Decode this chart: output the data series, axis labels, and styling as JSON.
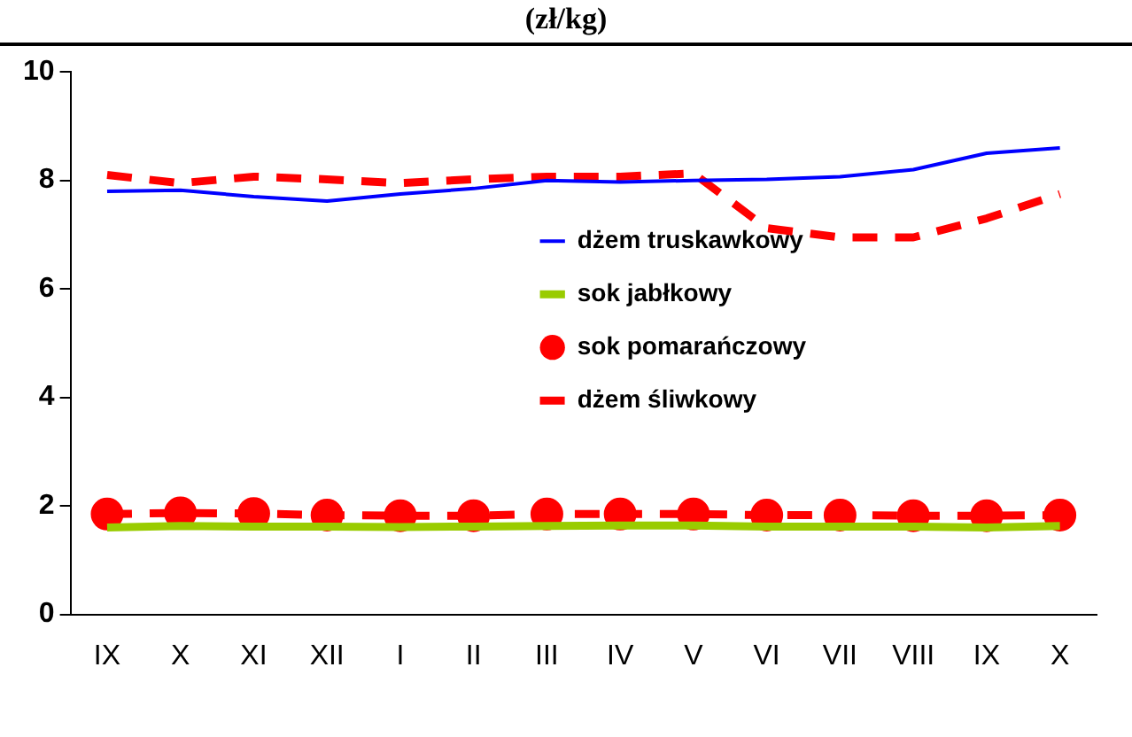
{
  "chart_data": {
    "type": "line",
    "title": "(zł/kg)",
    "categories": [
      "IX",
      "X",
      "XI",
      "XII",
      "I",
      "II",
      "III",
      "IV",
      "V",
      "VI",
      "VII",
      "VIII",
      "IX",
      "X"
    ],
    "series": [
      {
        "name": "dżem truskawkowy",
        "color": "#0000ff",
        "values": [
          7.8,
          7.82,
          7.7,
          7.62,
          7.75,
          7.85,
          8.0,
          7.97,
          8.0,
          8.02,
          8.07,
          8.2,
          8.5,
          8.6
        ]
      },
      {
        "name": "sok jabłkowy",
        "color": "#99cc00",
        "values": [
          1.6,
          1.63,
          1.62,
          1.62,
          1.61,
          1.62,
          1.63,
          1.64,
          1.64,
          1.62,
          1.62,
          1.62,
          1.6,
          1.63
        ]
      },
      {
        "name": "sok pomarańczowy",
        "color": "#ff0000",
        "marker": "circle",
        "line_style": "dashed",
        "values": [
          1.85,
          1.87,
          1.86,
          1.83,
          1.82,
          1.82,
          1.85,
          1.85,
          1.85,
          1.83,
          1.83,
          1.82,
          1.82,
          1.83
        ]
      },
      {
        "name": "dżem śliwkowy",
        "color": "#ff0000",
        "line_style": "dashed",
        "values": [
          8.1,
          7.95,
          8.07,
          8.02,
          7.95,
          8.02,
          8.07,
          8.07,
          8.13,
          7.12,
          6.95,
          6.95,
          7.3,
          7.75
        ]
      }
    ],
    "ylim": [
      0,
      10
    ],
    "yticks": [
      0,
      2,
      4,
      6,
      8,
      10
    ],
    "grid": false,
    "legend": "center",
    "marker": "none",
    "line_style": "solid"
  }
}
